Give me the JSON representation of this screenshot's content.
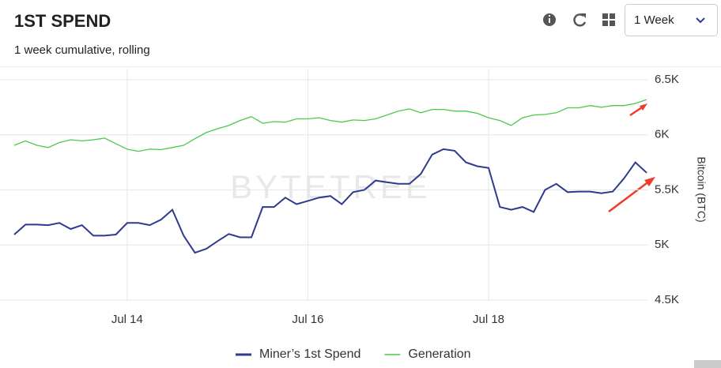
{
  "header": {
    "title": "1ST SPEND",
    "subtitle": "1 week cumulative, rolling",
    "range": "1 Week"
  },
  "chart_data": {
    "type": "line",
    "watermark": "BYTETREE",
    "y_axis_label": "Bitcoin (BTC)",
    "categories": [
      null,
      null,
      null,
      null,
      null,
      null,
      null,
      null,
      null,
      null,
      "Jul 14",
      null,
      null,
      null,
      null,
      null,
      null,
      null,
      null,
      null,
      null,
      null,
      null,
      null,
      null,
      null,
      "Jul 16",
      null,
      null,
      null,
      null,
      null,
      null,
      null,
      null,
      null,
      null,
      null,
      null,
      null,
      null,
      null,
      "Jul 18",
      null,
      null,
      null,
      null,
      null,
      null,
      null,
      null,
      null,
      null,
      null,
      null,
      null,
      null
    ],
    "series": [
      {
        "name": "Miner’s 1st Spend",
        "color": "#2e3a8c",
        "values": [
          5095,
          5185,
          5185,
          5180,
          5200,
          5145,
          5180,
          5085,
          5085,
          5095,
          5200,
          5200,
          5180,
          5230,
          5320,
          5085,
          4930,
          4965,
          5035,
          5100,
          5070,
          5070,
          5345,
          5345,
          5430,
          5370,
          5400,
          5430,
          5445,
          5370,
          5480,
          5500,
          5585,
          5570,
          5555,
          5555,
          5645,
          5820,
          5870,
          5855,
          5750,
          5715,
          5700,
          5345,
          5320,
          5345,
          5300,
          5500,
          5555,
          5480,
          5485,
          5485,
          5470,
          5485,
          5605,
          5750,
          5655
        ]
      },
      {
        "name": "Generation",
        "color": "#4cc94c",
        "values": [
          5905,
          5945,
          5905,
          5885,
          5930,
          5955,
          5945,
          5955,
          5970,
          5920,
          5870,
          5850,
          5870,
          5865,
          5885,
          5905,
          5965,
          6020,
          6055,
          6085,
          6130,
          6165,
          6105,
          6120,
          6115,
          6145,
          6145,
          6155,
          6130,
          6115,
          6135,
          6130,
          6145,
          6180,
          6215,
          6235,
          6200,
          6230,
          6230,
          6215,
          6215,
          6195,
          6155,
          6130,
          6085,
          6155,
          6180,
          6185,
          6200,
          6245,
          6245,
          6265,
          6250,
          6265,
          6265,
          6285,
          6320
        ]
      }
    ],
    "ylim": [
      4500,
      6600
    ],
    "yticks": [
      {
        "value": 4500,
        "label": "4.5K"
      },
      {
        "value": 5000,
        "label": "5K"
      },
      {
        "value": 5500,
        "label": "5.5K"
      },
      {
        "value": 6000,
        "label": "6K"
      },
      {
        "value": 6500,
        "label": "6.5K"
      }
    ],
    "grid": true,
    "legend": "bottom"
  }
}
